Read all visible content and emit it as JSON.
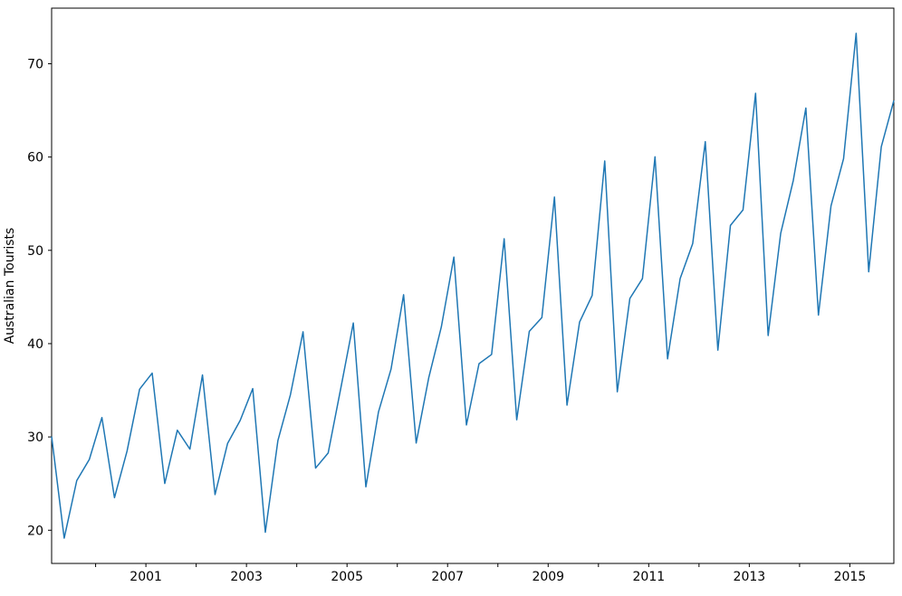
{
  "chart_data": {
    "type": "line",
    "title": "",
    "xlabel": "",
    "ylabel": "Australian Tourists",
    "line_color": "#1f77b4",
    "axis_color": "#000000",
    "background_color": "#ffffff",
    "grid": false,
    "legend": "none",
    "frequency": "quarterly",
    "x_start_year": 1999,
    "xlim": [
      1999.125,
      2015.875
    ],
    "ylim": [
      16.44,
      75.96
    ],
    "yticks": [
      20,
      30,
      40,
      50,
      60,
      70
    ],
    "xticks": [
      {
        "year": 2000,
        "label": ""
      },
      {
        "year": 2001,
        "label": "2001"
      },
      {
        "year": 2002,
        "label": ""
      },
      {
        "year": 2003,
        "label": "2003"
      },
      {
        "year": 2004,
        "label": ""
      },
      {
        "year": 2005,
        "label": "2005"
      },
      {
        "year": 2006,
        "label": ""
      },
      {
        "year": 2007,
        "label": "2007"
      },
      {
        "year": 2008,
        "label": ""
      },
      {
        "year": 2009,
        "label": "2009"
      },
      {
        "year": 2010,
        "label": ""
      },
      {
        "year": 2011,
        "label": "2011"
      },
      {
        "year": 2012,
        "label": ""
      },
      {
        "year": 2013,
        "label": "2013"
      },
      {
        "year": 2014,
        "label": ""
      },
      {
        "year": 2015,
        "label": "2015"
      }
    ],
    "periods": [
      "1999Q1",
      "1999Q2",
      "1999Q3",
      "1999Q4",
      "2000Q1",
      "2000Q2",
      "2000Q3",
      "2000Q4",
      "2001Q1",
      "2001Q2",
      "2001Q3",
      "2001Q4",
      "2002Q1",
      "2002Q2",
      "2002Q3",
      "2002Q4",
      "2003Q1",
      "2003Q2",
      "2003Q3",
      "2003Q4",
      "2004Q1",
      "2004Q2",
      "2004Q3",
      "2004Q4",
      "2005Q1",
      "2005Q2",
      "2005Q3",
      "2005Q4",
      "2006Q1",
      "2006Q2",
      "2006Q3",
      "2006Q4",
      "2007Q1",
      "2007Q2",
      "2007Q3",
      "2007Q4",
      "2008Q1",
      "2008Q2",
      "2008Q3",
      "2008Q4",
      "2009Q1",
      "2009Q2",
      "2009Q3",
      "2009Q4",
      "2010Q1",
      "2010Q2",
      "2010Q3",
      "2010Q4",
      "2011Q1",
      "2011Q2",
      "2011Q3",
      "2011Q4",
      "2012Q1",
      "2012Q2",
      "2012Q3",
      "2012Q4",
      "2013Q1",
      "2013Q2",
      "2013Q3",
      "2013Q4",
      "2014Q1",
      "2014Q2",
      "2014Q3",
      "2014Q4",
      "2015Q1",
      "2015Q2",
      "2015Q3",
      "2015Q4"
    ],
    "values": [
      30.05,
      19.15,
      25.32,
      27.59,
      32.08,
      23.49,
      28.48,
      35.12,
      36.84,
      25.01,
      30.72,
      28.69,
      36.64,
      23.82,
      29.31,
      31.77,
      35.18,
      19.78,
      29.6,
      34.54,
      41.27,
      26.66,
      28.28,
      35.19,
      42.21,
      24.65,
      32.67,
      37.26,
      45.24,
      29.35,
      36.34,
      41.78,
      49.28,
      31.28,
      37.85,
      38.84,
      51.24,
      31.84,
      41.32,
      42.8,
      55.71,
      33.41,
      42.32,
      45.16,
      59.58,
      34.84,
      44.84,
      46.97,
      60.02,
      38.37,
      46.98,
      50.73,
      61.65,
      39.3,
      52.67,
      54.33,
      66.83,
      40.87,
      51.83,
      57.49,
      65.25,
      43.06,
      54.76,
      59.83,
      73.26,
      47.7,
      61.1,
      66.06
    ]
  }
}
